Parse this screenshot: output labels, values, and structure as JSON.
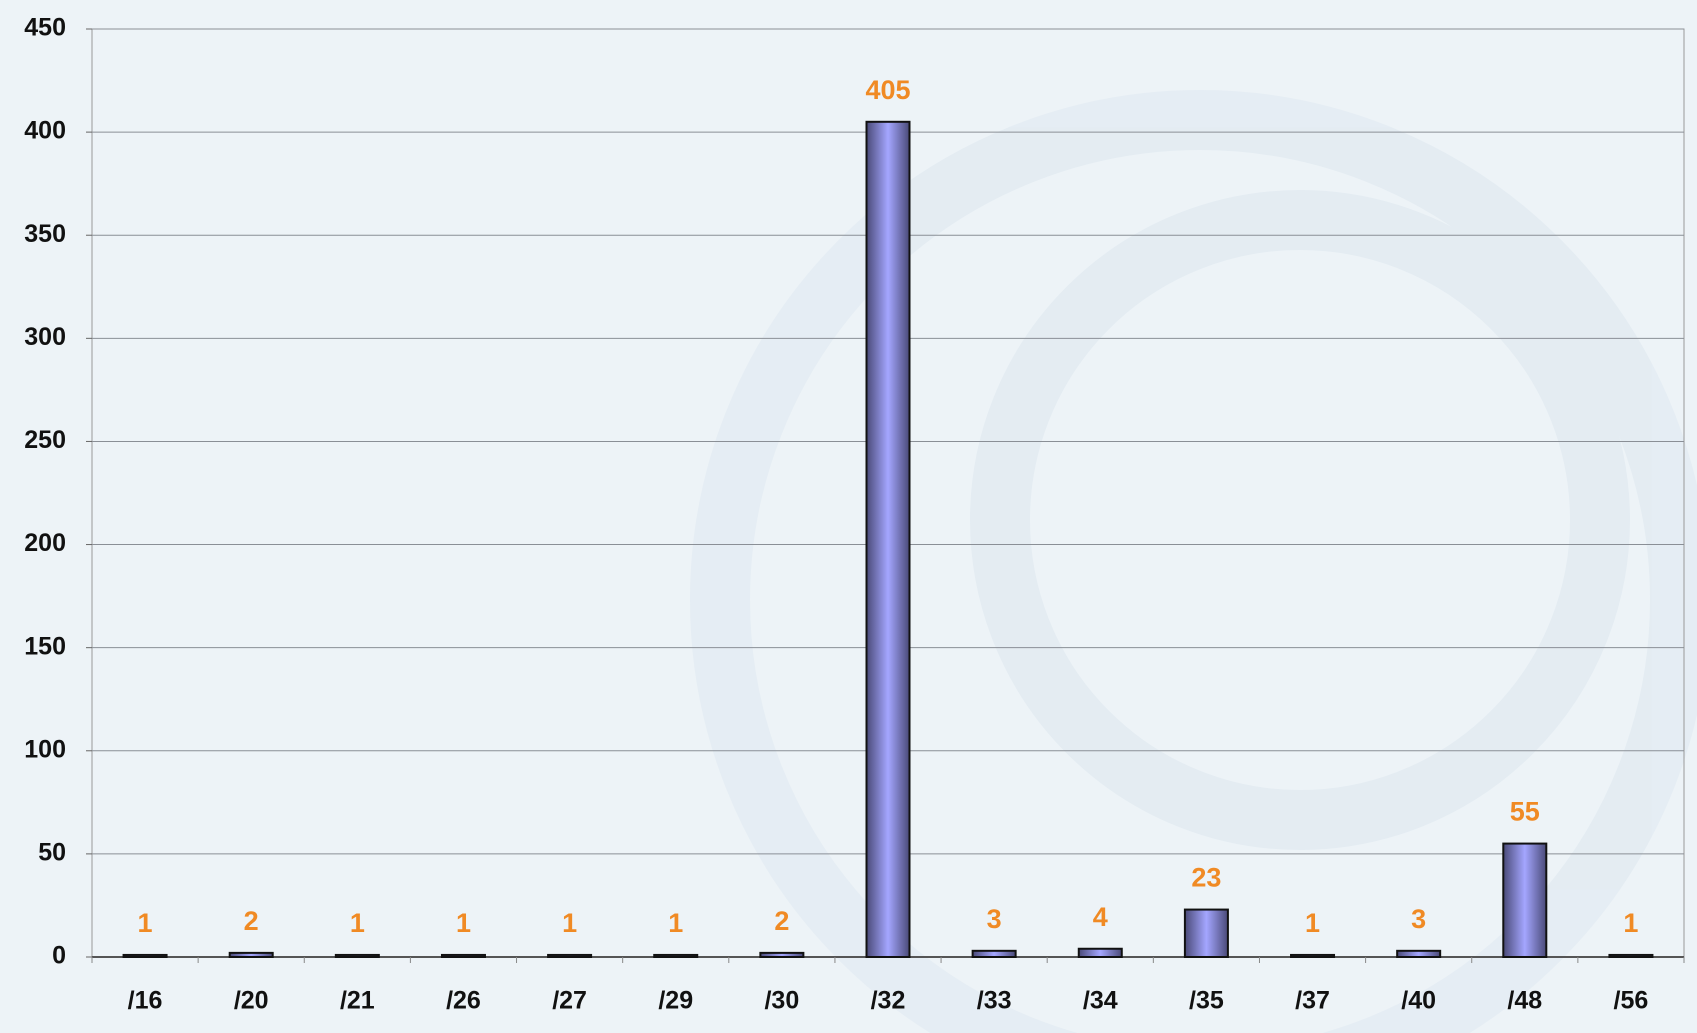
{
  "chart_data": {
    "type": "bar",
    "categories": [
      "/16",
      "/20",
      "/21",
      "/26",
      "/27",
      "/29",
      "/30",
      "/32",
      "/33",
      "/34",
      "/35",
      "/37",
      "/40",
      "/48",
      "/56"
    ],
    "values": [
      1,
      2,
      1,
      1,
      1,
      1,
      2,
      405,
      3,
      4,
      23,
      1,
      3,
      55,
      1
    ],
    "color": "#a4a6ff",
    "ylim": [
      0,
      450
    ],
    "yticks": [
      0,
      50,
      100,
      150,
      200,
      250,
      300,
      350,
      400,
      450
    ],
    "grid": true
  }
}
